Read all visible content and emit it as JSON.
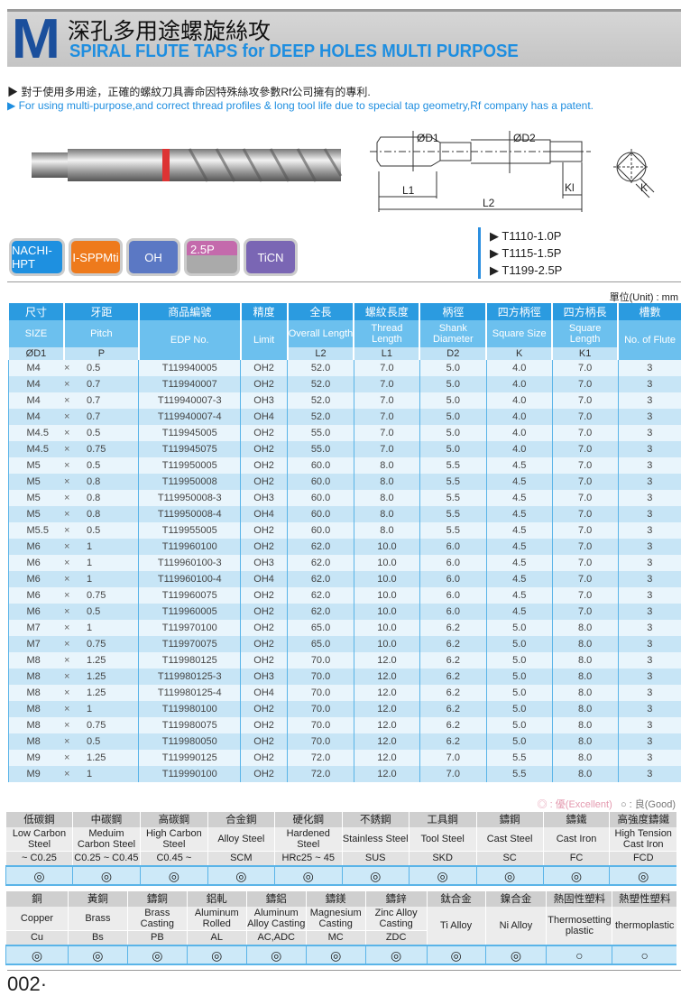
{
  "header": {
    "logo_letter": "M",
    "title_zh": "深孔多用途螺旋絲攻",
    "title_en": "SPIRAL FLUTE TAPS for DEEP HOLES MULTI PURPOSE"
  },
  "bullets": [
    "▶ 對于使用多用途，正確的螺紋刀具壽命因特殊絲攻參數Rf公司擁有的專利.",
    "▶ For using multi-purpose,and correct thread profiles & long tool life due to special tap geometry,Rf company has a patent."
  ],
  "drawing": {
    "labels": {
      "d1": "ØD1",
      "d2": "ØD2",
      "l1": "L1",
      "l2": "L2",
      "kl": "Kl",
      "k": "K"
    }
  },
  "badges": [
    {
      "label": "NACHI-HPT",
      "color": "#1e90e0"
    },
    {
      "label": "I-SPPMti",
      "color": "#ee7a1c"
    },
    {
      "label": "OH",
      "color": "#5b78c4"
    },
    {
      "label": "2.5P",
      "color": "#c46aac"
    },
    {
      "label": "TiCN",
      "color": "#7a66b4"
    }
  ],
  "series": [
    "▶ T1110-1.0P",
    "▶ T1115-1.5P",
    "▶ T1199-2.5P"
  ],
  "unit": "單位(Unit) : mm",
  "table": {
    "head_zh": [
      "尺寸",
      "牙距",
      "商品編號",
      "精度",
      "全長",
      "螺紋長度",
      "柄徑",
      "四方柄徑",
      "四方柄長",
      "槽數"
    ],
    "head_en": [
      "SIZE",
      "Pitch",
      "EDP No.",
      "Limit",
      "Overall Length",
      "Thread Length",
      "Shank Diameter",
      "Square Size",
      "Square Length",
      "No. of Flute"
    ],
    "head_sym": [
      "ØD1",
      "P",
      "L2",
      "L1",
      "D2",
      "K",
      "K1"
    ],
    "times": "×",
    "rows": [
      [
        "M4",
        "0.5",
        "T119940005",
        "OH2",
        "52.0",
        "7.0",
        "5.0",
        "4.0",
        "7.0",
        "3"
      ],
      [
        "M4",
        "0.7",
        "T119940007",
        "OH2",
        "52.0",
        "7.0",
        "5.0",
        "4.0",
        "7.0",
        "3"
      ],
      [
        "M4",
        "0.7",
        "T119940007-3",
        "OH3",
        "52.0",
        "7.0",
        "5.0",
        "4.0",
        "7.0",
        "3"
      ],
      [
        "M4",
        "0.7",
        "T119940007-4",
        "OH4",
        "52.0",
        "7.0",
        "5.0",
        "4.0",
        "7.0",
        "3"
      ],
      [
        "M4.5",
        "0.5",
        "T119945005",
        "OH2",
        "55.0",
        "7.0",
        "5.0",
        "4.0",
        "7.0",
        "3"
      ],
      [
        "M4.5",
        "0.75",
        "T119945075",
        "OH2",
        "55.0",
        "7.0",
        "5.0",
        "4.0",
        "7.0",
        "3"
      ],
      [
        "M5",
        "0.5",
        "T119950005",
        "OH2",
        "60.0",
        "8.0",
        "5.5",
        "4.5",
        "7.0",
        "3"
      ],
      [
        "M5",
        "0.8",
        "T119950008",
        "OH2",
        "60.0",
        "8.0",
        "5.5",
        "4.5",
        "7.0",
        "3"
      ],
      [
        "M5",
        "0.8",
        "T119950008-3",
        "OH3",
        "60.0",
        "8.0",
        "5.5",
        "4.5",
        "7.0",
        "3"
      ],
      [
        "M5",
        "0.8",
        "T119950008-4",
        "OH4",
        "60.0",
        "8.0",
        "5.5",
        "4.5",
        "7.0",
        "3"
      ],
      [
        "M5.5",
        "0.5",
        "T119955005",
        "OH2",
        "60.0",
        "8.0",
        "5.5",
        "4.5",
        "7.0",
        "3"
      ],
      [
        "M6",
        "1",
        "T119960100",
        "OH2",
        "62.0",
        "10.0",
        "6.0",
        "4.5",
        "7.0",
        "3"
      ],
      [
        "M6",
        "1",
        "T119960100-3",
        "OH3",
        "62.0",
        "10.0",
        "6.0",
        "4.5",
        "7.0",
        "3"
      ],
      [
        "M6",
        "1",
        "T119960100-4",
        "OH4",
        "62.0",
        "10.0",
        "6.0",
        "4.5",
        "7.0",
        "3"
      ],
      [
        "M6",
        "0.75",
        "T119960075",
        "OH2",
        "62.0",
        "10.0",
        "6.0",
        "4.5",
        "7.0",
        "3"
      ],
      [
        "M6",
        "0.5",
        "T119960005",
        "OH2",
        "62.0",
        "10.0",
        "6.0",
        "4.5",
        "7.0",
        "3"
      ],
      [
        "M7",
        "1",
        "T119970100",
        "OH2",
        "65.0",
        "10.0",
        "6.2",
        "5.0",
        "8.0",
        "3"
      ],
      [
        "M7",
        "0.75",
        "T119970075",
        "OH2",
        "65.0",
        "10.0",
        "6.2",
        "5.0",
        "8.0",
        "3"
      ],
      [
        "M8",
        "1.25",
        "T119980125",
        "OH2",
        "70.0",
        "12.0",
        "6.2",
        "5.0",
        "8.0",
        "3"
      ],
      [
        "M8",
        "1.25",
        "T119980125-3",
        "OH3",
        "70.0",
        "12.0",
        "6.2",
        "5.0",
        "8.0",
        "3"
      ],
      [
        "M8",
        "1.25",
        "T119980125-4",
        "OH4",
        "70.0",
        "12.0",
        "6.2",
        "5.0",
        "8.0",
        "3"
      ],
      [
        "M8",
        "1",
        "T119980100",
        "OH2",
        "70.0",
        "12.0",
        "6.2",
        "5.0",
        "8.0",
        "3"
      ],
      [
        "M8",
        "0.75",
        "T119980075",
        "OH2",
        "70.0",
        "12.0",
        "6.2",
        "5.0",
        "8.0",
        "3"
      ],
      [
        "M8",
        "0.5",
        "T119980050",
        "OH2",
        "70.0",
        "12.0",
        "6.2",
        "5.0",
        "8.0",
        "3"
      ],
      [
        "M9",
        "1.25",
        "T119990125",
        "OH2",
        "72.0",
        "12.0",
        "7.0",
        "5.5",
        "8.0",
        "3"
      ],
      [
        "M9",
        "1",
        "T119990100",
        "OH2",
        "72.0",
        "12.0",
        "7.0",
        "5.5",
        "8.0",
        "3"
      ]
    ]
  },
  "legend": {
    "excellent": "◎ : 優(Excellent)",
    "good": "○ : 良(Good)"
  },
  "materials1": [
    {
      "zh": "低碳鋼",
      "en": "Low Carbon Steel",
      "code": "~ C0.25",
      "rating": "◎"
    },
    {
      "zh": "中碳鋼",
      "en": "Meduim Carbon Steel",
      "code": "C0.25 ~ C0.45",
      "rating": "◎"
    },
    {
      "zh": "高碳鋼",
      "en": "High Carbon Steel",
      "code": "C0.45 ~",
      "rating": "◎"
    },
    {
      "zh": "合金鋼",
      "en": "Alloy Steel",
      "code": "SCM",
      "rating": "◎"
    },
    {
      "zh": "硬化鋼",
      "en": "Hardened Steel",
      "code": "HRc25 ~ 45",
      "rating": "◎"
    },
    {
      "zh": "不銹鋼",
      "en": "Stainless Steel",
      "code": "SUS",
      "rating": "◎"
    },
    {
      "zh": "工具鋼",
      "en": "Tool Steel",
      "code": "SKD",
      "rating": "◎"
    },
    {
      "zh": "鑄鋼",
      "en": "Cast Steel",
      "code": "SC",
      "rating": "◎"
    },
    {
      "zh": "鑄鐵",
      "en": "Cast Iron",
      "code": "FC",
      "rating": "◎"
    },
    {
      "zh": "高強度鑄鐵",
      "en": "High Tension Cast Iron",
      "code": "FCD",
      "rating": "◎"
    }
  ],
  "materials2": [
    {
      "zh": "銅",
      "en": "Copper",
      "code": "Cu",
      "rating": "◎"
    },
    {
      "zh": "黃銅",
      "en": "Brass",
      "code": "Bs",
      "rating": "◎"
    },
    {
      "zh": "鑄銅",
      "en": "Brass Casting",
      "code": "PB",
      "rating": "◎"
    },
    {
      "zh": "鋁軋",
      "en": "Aluminum Rolled",
      "code": "AL",
      "rating": "◎"
    },
    {
      "zh": "鑄鋁",
      "en": "Aluminum Alloy Casting",
      "code": "AC,ADC",
      "rating": "◎"
    },
    {
      "zh": "鑄鎂",
      "en": "Magnesium Casting",
      "code": "MC",
      "rating": "◎"
    },
    {
      "zh": "鑄鋅",
      "en": "Zinc Alloy Casting",
      "code": "ZDC",
      "rating": "◎"
    },
    {
      "zh": "鈦合金",
      "en": "Ti Alloy",
      "code": "",
      "rating": "◎"
    },
    {
      "zh": "鎳合金",
      "en": "Ni Alloy",
      "code": "",
      "rating": "◎"
    },
    {
      "zh": "熱固性塑料",
      "en": "Thermosetting plastic",
      "code": "",
      "rating": "○"
    },
    {
      "zh": "熱塑性塑料",
      "en": "thermoplastic",
      "code": "",
      "rating": "○"
    }
  ],
  "page_number": "002·"
}
